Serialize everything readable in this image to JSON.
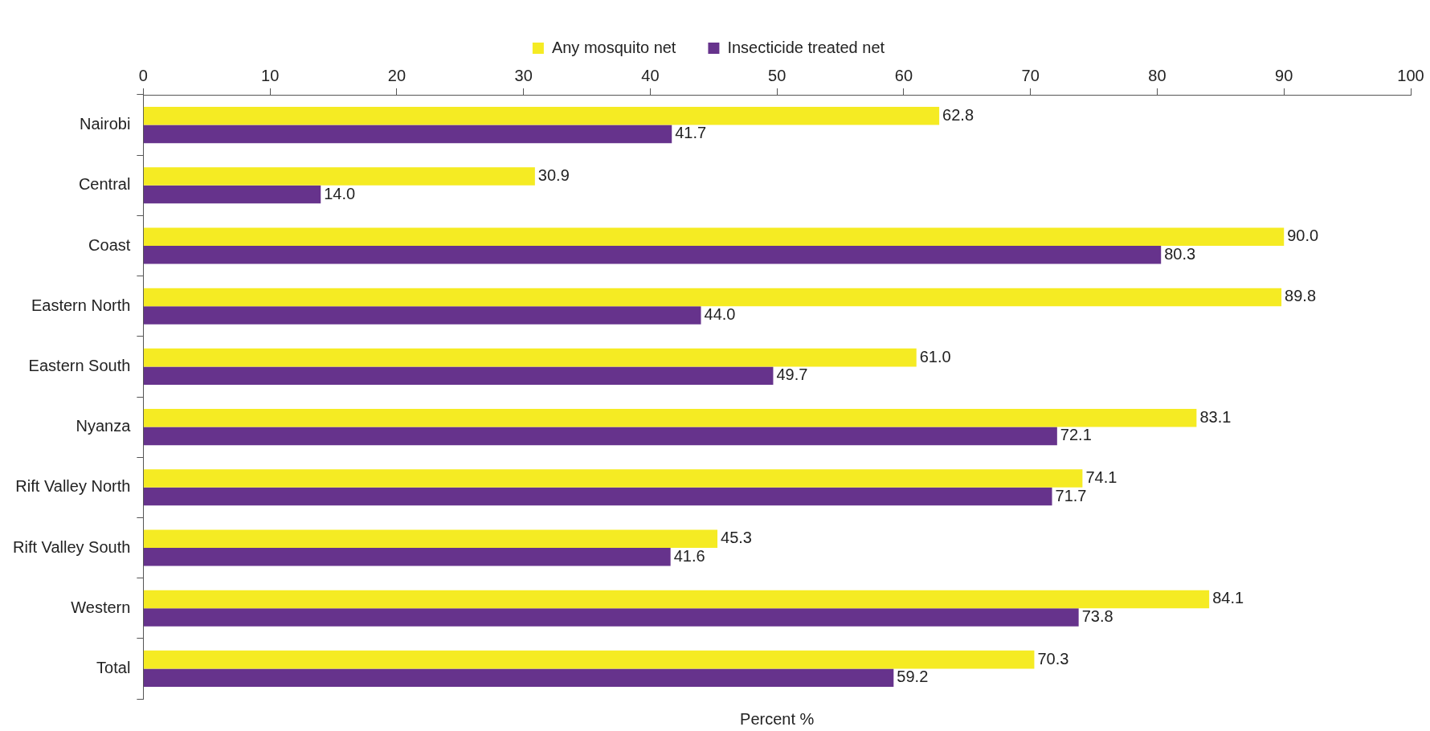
{
  "chart_data": {
    "type": "bar",
    "orientation": "horizontal",
    "xlabel": "Percent %",
    "categories": [
      "Nairobi",
      "Central",
      "Coast",
      "Eastern North",
      "Eastern South",
      "Nyanza",
      "Rift Valley North",
      "Rift Valley South",
      "Western",
      "Total"
    ],
    "series": [
      {
        "name": "Any mosquito net",
        "color": "#f5eb23",
        "values": [
          62.8,
          30.9,
          90.0,
          89.8,
          61.0,
          83.1,
          74.1,
          45.3,
          84.1,
          70.3
        ],
        "value_labels": [
          "62.8",
          "30.9",
          "90.0",
          "89.8",
          "61.0",
          "83.1",
          "74.1",
          "45.3",
          "84.1",
          "70.3"
        ]
      },
      {
        "name": "Insecticide treated net",
        "color": "#66338c",
        "values": [
          41.7,
          14.0,
          80.3,
          44.0,
          49.7,
          72.1,
          71.7,
          41.6,
          73.8,
          59.2
        ],
        "value_labels": [
          "41.7",
          "14.0",
          "80.3",
          "44.0",
          "49.7",
          "72.1",
          "71.7",
          "41.6",
          "73.8",
          "59.2"
        ]
      }
    ],
    "xlim": [
      0,
      100
    ],
    "xticks": [
      0,
      10,
      20,
      30,
      40,
      50,
      60,
      70,
      80,
      90,
      100
    ],
    "grid": false,
    "legend": "top"
  }
}
